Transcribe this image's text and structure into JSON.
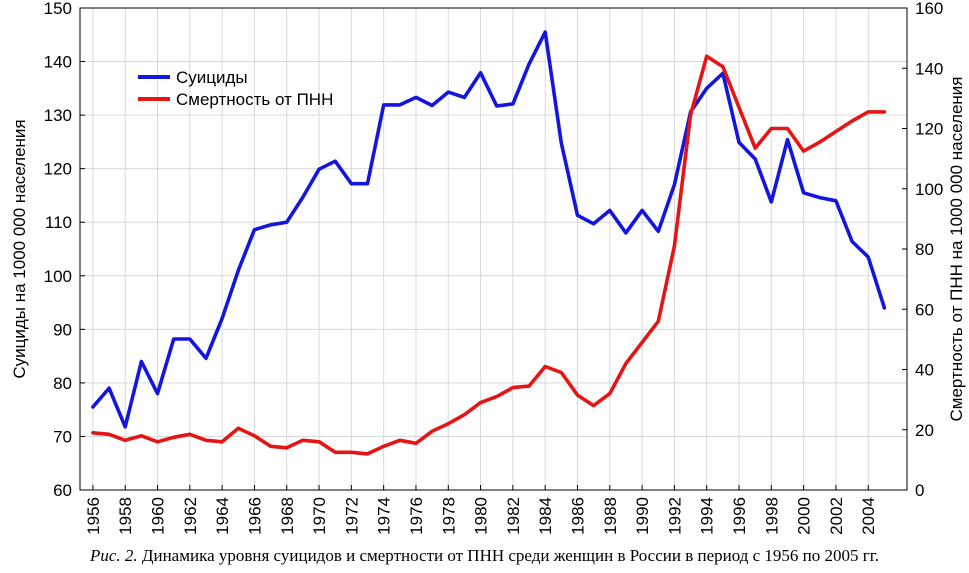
{
  "chart_data": {
    "type": "line",
    "title": "",
    "xlabel": "",
    "ylabel_left": "Суициды на 1000 000 населения",
    "ylabel_right": "Смертность от ПНН на 1000 000 населения",
    "ylim_left": [
      60,
      150
    ],
    "ylim_right": [
      0,
      160
    ],
    "yticks_left": [
      "60",
      "70",
      "80",
      "90",
      "100",
      "110",
      "120",
      "130",
      "140",
      "150"
    ],
    "yticks_right": [
      "0",
      "20",
      "40",
      "60",
      "80",
      "100",
      "120",
      "140",
      "160"
    ],
    "xticks": [
      "1956",
      "1958",
      "1960",
      "1962",
      "1964",
      "1966",
      "1968",
      "1970",
      "1972",
      "1974",
      "1976",
      "1978",
      "1980",
      "1982",
      "1984",
      "1986",
      "1988",
      "1990",
      "1992",
      "1994",
      "1996",
      "1998",
      "2000",
      "2002",
      "2004"
    ],
    "x": [
      1956,
      1957,
      1958,
      1959,
      1960,
      1961,
      1962,
      1963,
      1964,
      1965,
      1966,
      1967,
      1968,
      1969,
      1970,
      1971,
      1972,
      1973,
      1974,
      1975,
      1976,
      1977,
      1978,
      1979,
      1980,
      1981,
      1982,
      1983,
      1984,
      1985,
      1986,
      1987,
      1988,
      1989,
      1990,
      1991,
      1992,
      1993,
      1994,
      1995,
      1996,
      1997,
      1998,
      1999,
      2000,
      2001,
      2002,
      2003,
      2004,
      2005
    ],
    "grid": true,
    "legend_position": "top-left",
    "series": [
      {
        "name": "Суициды",
        "axis": "left",
        "color": "#1515e0",
        "values": [
          75.5,
          79.0,
          71.8,
          84.0,
          78.0,
          88.2,
          88.2,
          84.6,
          92.0,
          101.0,
          108.6,
          109.5,
          110.0,
          114.7,
          119.9,
          121.4,
          117.2,
          117.2,
          131.9,
          131.9,
          133.3,
          131.8,
          134.3,
          133.3,
          137.9,
          131.7,
          132.1,
          139.5,
          145.5,
          124.8,
          111.3,
          109.7,
          112.2,
          108.0,
          112.2,
          108.3,
          117.0,
          130.6,
          135.0,
          137.8,
          124.9,
          121.8,
          113.8,
          125.4,
          115.5,
          114.6,
          114.0,
          106.4,
          103.5,
          94.0
        ]
      },
      {
        "name": "Смертность от ПНН",
        "axis": "right",
        "color": "#e51515",
        "values": [
          19.0,
          18.5,
          16.5,
          18.0,
          16.0,
          17.5,
          18.5,
          16.5,
          16.0,
          20.5,
          18.0,
          14.5,
          14.0,
          16.5,
          16.0,
          12.5,
          12.5,
          12.0,
          14.5,
          16.5,
          15.5,
          19.5,
          22.0,
          25.0,
          29.0,
          31.0,
          34.0,
          34.5,
          41.0,
          39.0,
          31.5,
          28.0,
          32.0,
          42.0,
          49.0,
          56.0,
          81.0,
          124.5,
          144.0,
          140.5,
          127.0,
          113.5,
          120.0,
          120.0,
          112.5,
          115.5,
          119.0,
          122.5,
          125.5,
          125.5
        ]
      }
    ]
  },
  "caption": {
    "lead": "Рис. 2.",
    "text": " Динамика уровня суицидов и смертности от ПНН среди женщин в России в период с 1956 по 2005 гг."
  }
}
